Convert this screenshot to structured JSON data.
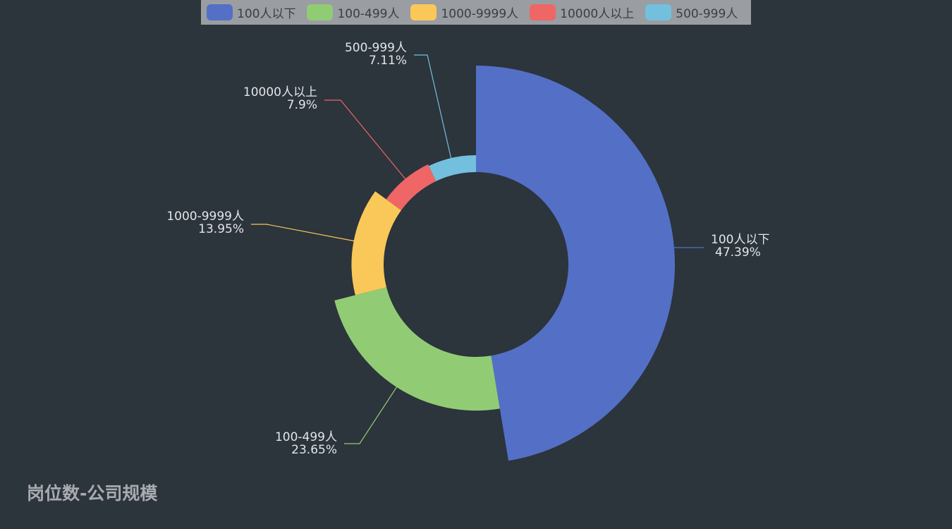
{
  "chart_data": {
    "type": "pie",
    "variant": "rose-donut",
    "title": "岗位数-公司规模",
    "legend_position": "top-center",
    "slices": [
      {
        "name": "100人以下",
        "value": 47.39,
        "label": "47.39%",
        "color": "#5470c6"
      },
      {
        "name": "100-499人",
        "value": 23.65,
        "label": "23.65%",
        "color": "#91cc75"
      },
      {
        "name": "1000-9999人",
        "value": 13.95,
        "label": "13.95%",
        "color": "#fac858"
      },
      {
        "name": "10000人以上",
        "value": 7.9,
        "label": "7.9%",
        "color": "#ee6666"
      },
      {
        "name": "500-999人",
        "value": 7.11,
        "label": "7.11%",
        "color": "#73c0de"
      }
    ]
  }
}
